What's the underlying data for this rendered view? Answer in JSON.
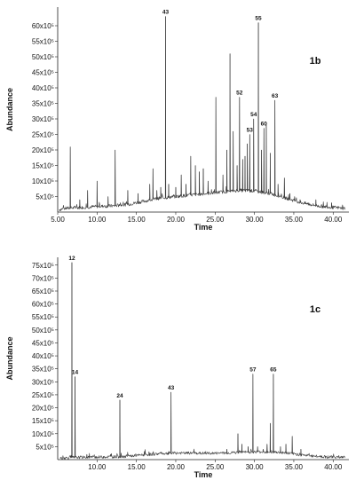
{
  "chart_data": [
    {
      "id": "1b",
      "type": "line",
      "panel_label": "1b",
      "xlabel": "Time",
      "ylabel": "Abundance",
      "xlim": [
        5,
        42
      ],
      "ylim": [
        0,
        66
      ],
      "x_ticks": [
        5.0,
        10.0,
        15.0,
        20.0,
        25.0,
        30.0,
        35.0,
        40.0
      ],
      "x_tick_labels": [
        "5.00",
        "10.00",
        "15.00",
        "20.00",
        "25.00",
        "30.00",
        "35.00",
        "40.00"
      ],
      "y_ticks": [
        5,
        10,
        15,
        20,
        25,
        30,
        35,
        40,
        45,
        50,
        55,
        60
      ],
      "y_tick_labels": [
        "5x10⁵",
        "10x10⁵",
        "15x10⁵",
        "20x10⁵",
        "25x10⁵",
        "30x10⁵",
        "35x10⁵",
        "40x10⁵",
        "45x10⁵",
        "50x10⁵",
        "55x10⁵",
        "60x10⁵"
      ],
      "baseline": [
        [
          5.2,
          0.8
        ],
        [
          6.0,
          1.2
        ],
        [
          8.0,
          1.5
        ],
        [
          10.0,
          1.8
        ],
        [
          12.0,
          2.0
        ],
        [
          14.0,
          2.5
        ],
        [
          16.0,
          3.5
        ],
        [
          18.0,
          4.5
        ],
        [
          20.0,
          5.0
        ],
        [
          22.0,
          5.5
        ],
        [
          24.0,
          6.0
        ],
        [
          26.0,
          6.5
        ],
        [
          28.0,
          7.0
        ],
        [
          30.0,
          6.8
        ],
        [
          32.0,
          6.0
        ],
        [
          34.0,
          4.5
        ],
        [
          36.0,
          3.0
        ],
        [
          38.0,
          2.0
        ],
        [
          40.0,
          1.5
        ],
        [
          41.5,
          1.2
        ]
      ],
      "peaks": [
        {
          "x": 6.6,
          "y": 21
        },
        {
          "x": 7.8,
          "y": 4
        },
        {
          "x": 8.8,
          "y": 7
        },
        {
          "x": 10.0,
          "y": 10
        },
        {
          "x": 11.4,
          "y": 5
        },
        {
          "x": 12.3,
          "y": 20
        },
        {
          "x": 13.9,
          "y": 7
        },
        {
          "x": 15.2,
          "y": 6
        },
        {
          "x": 16.7,
          "y": 9
        },
        {
          "x": 17.1,
          "y": 14
        },
        {
          "x": 17.6,
          "y": 7
        },
        {
          "x": 18.1,
          "y": 8
        },
        {
          "x": 18.7,
          "y": 63,
          "label": "43"
        },
        {
          "x": 19.1,
          "y": 9
        },
        {
          "x": 20.0,
          "y": 8
        },
        {
          "x": 20.7,
          "y": 12
        },
        {
          "x": 21.3,
          "y": 9
        },
        {
          "x": 21.9,
          "y": 18
        },
        {
          "x": 22.5,
          "y": 15
        },
        {
          "x": 23.0,
          "y": 13
        },
        {
          "x": 23.5,
          "y": 14
        },
        {
          "x": 24.1,
          "y": 10
        },
        {
          "x": 25.1,
          "y": 37
        },
        {
          "x": 26.0,
          "y": 12
        },
        {
          "x": 26.5,
          "y": 20
        },
        {
          "x": 26.9,
          "y": 51
        },
        {
          "x": 27.3,
          "y": 26
        },
        {
          "x": 27.8,
          "y": 15
        },
        {
          "x": 28.1,
          "y": 37,
          "label": "52"
        },
        {
          "x": 28.5,
          "y": 17
        },
        {
          "x": 28.8,
          "y": 18
        },
        {
          "x": 29.1,
          "y": 22
        },
        {
          "x": 29.4,
          "y": 25,
          "label": "53"
        },
        {
          "x": 29.9,
          "y": 30,
          "label": "54"
        },
        {
          "x": 30.5,
          "y": 61,
          "label": "55"
        },
        {
          "x": 30.9,
          "y": 20
        },
        {
          "x": 31.2,
          "y": 27,
          "label": "60"
        },
        {
          "x": 31.5,
          "y": 28
        },
        {
          "x": 32.0,
          "y": 19
        },
        {
          "x": 32.6,
          "y": 36,
          "label": "63"
        },
        {
          "x": 33.0,
          "y": 9
        },
        {
          "x": 33.8,
          "y": 11
        },
        {
          "x": 34.5,
          "y": 6
        },
        {
          "x": 35.1,
          "y": 5
        },
        {
          "x": 35.8,
          "y": 4
        },
        {
          "x": 36.9,
          "y": 3
        },
        {
          "x": 37.8,
          "y": 4
        },
        {
          "x": 39.8,
          "y": 3
        }
      ]
    },
    {
      "id": "1c",
      "type": "line",
      "panel_label": "1c",
      "xlabel": "Time",
      "ylabel": "Abundance",
      "xlim": [
        5,
        42
      ],
      "ylim": [
        0,
        78
      ],
      "x_ticks": [
        10.0,
        15.0,
        20.0,
        25.0,
        30.0,
        35.0,
        40.0
      ],
      "x_tick_labels": [
        "10.00",
        "15.00",
        "20.00",
        "25.00",
        "30.00",
        "35.00",
        "40.00"
      ],
      "y_ticks": [
        5,
        10,
        15,
        20,
        25,
        30,
        35,
        40,
        45,
        50,
        55,
        60,
        65,
        70,
        75
      ],
      "y_tick_labels": [
        "5x10⁵",
        "10x10⁵",
        "15x10⁵",
        "20x10⁵",
        "25x10⁵",
        "30x10⁵",
        "35x10⁵",
        "40x10⁵",
        "45x10⁵",
        "50x10⁵",
        "55x10⁵",
        "60x10⁵",
        "65x10⁵",
        "70x10⁵",
        "75x10⁵"
      ],
      "baseline": [
        [
          5.3,
          0.5
        ],
        [
          6.5,
          0.8
        ],
        [
          8.0,
          0.9
        ],
        [
          10.0,
          1.0
        ],
        [
          12.0,
          1.1
        ],
        [
          14.0,
          1.3
        ],
        [
          16.0,
          1.8
        ],
        [
          18.0,
          2.3
        ],
        [
          20.0,
          2.5
        ],
        [
          22.0,
          2.5
        ],
        [
          24.0,
          2.4
        ],
        [
          26.0,
          2.5
        ],
        [
          28.0,
          2.8
        ],
        [
          30.0,
          3.0
        ],
        [
          32.0,
          3.0
        ],
        [
          34.0,
          2.6
        ],
        [
          36.0,
          1.8
        ],
        [
          38.0,
          1.2
        ],
        [
          40.0,
          1.0
        ],
        [
          41.5,
          0.9
        ]
      ],
      "peaks": [
        {
          "x": 6.8,
          "y": 76,
          "label": "12"
        },
        {
          "x": 7.2,
          "y": 32,
          "label": "14"
        },
        {
          "x": 8.7,
          "y": 2
        },
        {
          "x": 12.9,
          "y": 23,
          "label": "24"
        },
        {
          "x": 16.6,
          "y": 3
        },
        {
          "x": 19.4,
          "y": 26,
          "label": "43"
        },
        {
          "x": 26.5,
          "y": 4
        },
        {
          "x": 27.9,
          "y": 10
        },
        {
          "x": 28.4,
          "y": 6
        },
        {
          "x": 29.2,
          "y": 5
        },
        {
          "x": 29.8,
          "y": 33,
          "label": "57"
        },
        {
          "x": 30.4,
          "y": 5
        },
        {
          "x": 31.1,
          "y": 4
        },
        {
          "x": 31.6,
          "y": 6
        },
        {
          "x": 32.0,
          "y": 14
        },
        {
          "x": 32.4,
          "y": 33,
          "label": "65"
        },
        {
          "x": 33.3,
          "y": 5
        },
        {
          "x": 34.0,
          "y": 6
        },
        {
          "x": 34.8,
          "y": 9
        },
        {
          "x": 35.9,
          "y": 4
        }
      ]
    }
  ]
}
